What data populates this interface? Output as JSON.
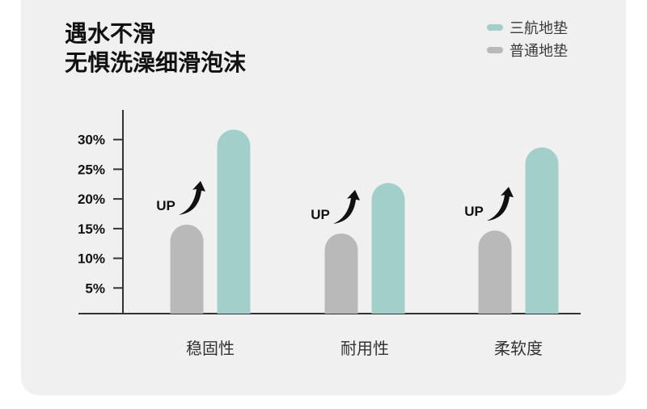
{
  "title_lines": [
    "遇水不滑",
    "无惧洗澡细滑泡沫"
  ],
  "chart_data": {
    "type": "bar",
    "categories": [
      "稳固性",
      "耐用性",
      "柔软度"
    ],
    "series": [
      {
        "name": "普通地垫",
        "color": "#b9b9b9",
        "values": [
          15,
          13.5,
          14
        ]
      },
      {
        "name": "三航地垫",
        "color": "#a2cfca",
        "values": [
          31,
          22,
          28
        ]
      }
    ],
    "yticks": [
      "5%",
      "10%",
      "15%",
      "20%",
      "25%",
      "30%"
    ],
    "ytick_values": [
      5,
      10,
      15,
      20,
      25,
      30
    ],
    "ylim": [
      0,
      31
    ],
    "annotation": "UP",
    "grid": false,
    "legend": "top-right"
  }
}
